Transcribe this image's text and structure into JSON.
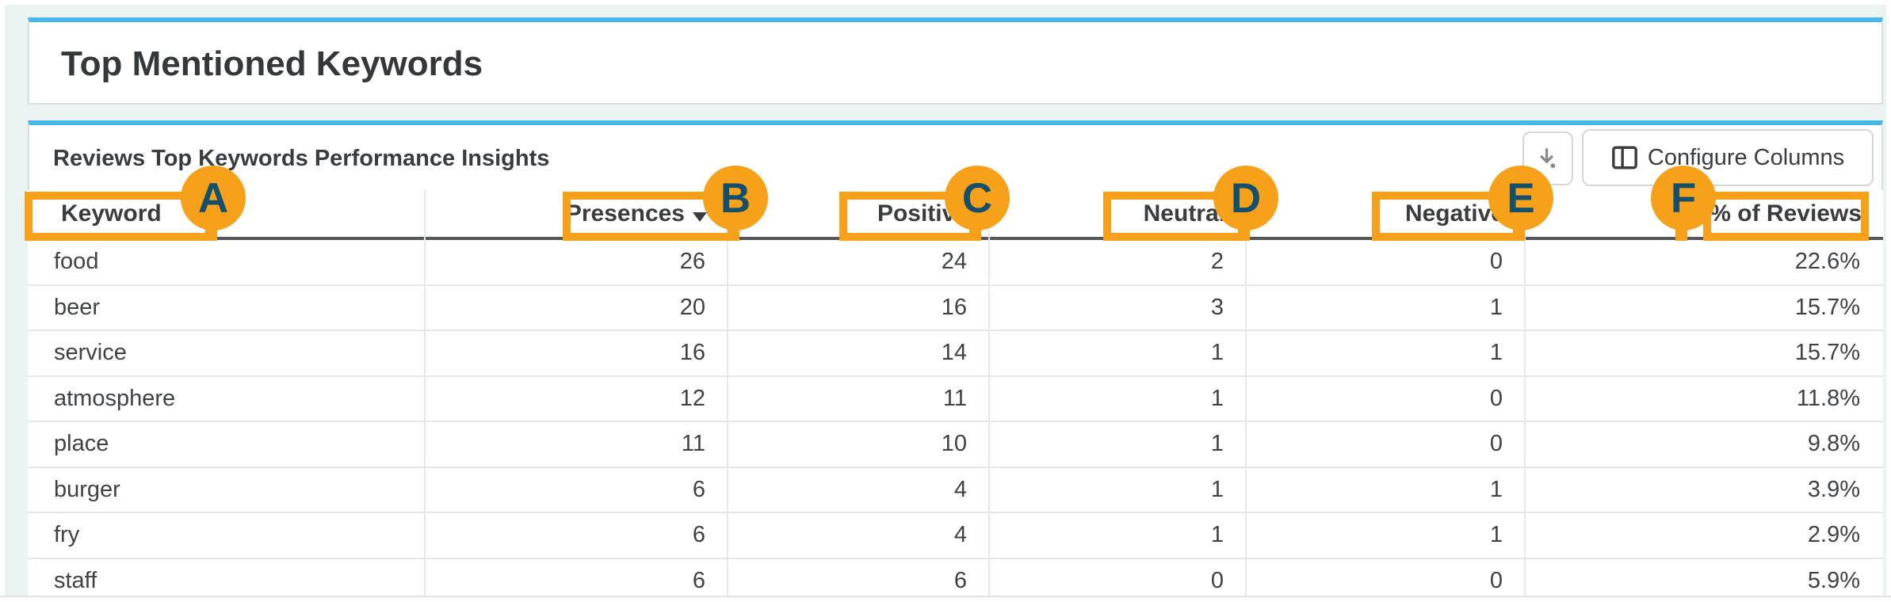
{
  "header_card": {
    "title": "Top Mentioned Keywords"
  },
  "panel": {
    "title": "Reviews Top Keywords Performance Insights",
    "buttons": {
      "configure_columns": "Configure Columns"
    }
  },
  "table": {
    "columns": [
      {
        "key": "keyword",
        "label": "Keyword",
        "marker": "A",
        "align": "left",
        "sorted": false
      },
      {
        "key": "presences",
        "label": "Presences",
        "marker": "B",
        "align": "right",
        "sorted": true
      },
      {
        "key": "positive",
        "label": "Positive",
        "marker": "C",
        "align": "right",
        "sorted": false
      },
      {
        "key": "neutral",
        "label": "Neutral",
        "marker": "D",
        "align": "right",
        "sorted": false
      },
      {
        "key": "negative",
        "label": "Negative",
        "marker": "E",
        "align": "right",
        "sorted": false
      },
      {
        "key": "pct_of_reviews",
        "label": "% of Reviews",
        "marker": "F",
        "align": "right",
        "sorted": false
      }
    ],
    "rows": [
      {
        "keyword": "food",
        "presences": "26",
        "positive": "24",
        "neutral": "2",
        "negative": "0",
        "pct_of_reviews": "22.6%"
      },
      {
        "keyword": "beer",
        "presences": "20",
        "positive": "16",
        "neutral": "3",
        "negative": "1",
        "pct_of_reviews": "15.7%"
      },
      {
        "keyword": "service",
        "presences": "16",
        "positive": "14",
        "neutral": "1",
        "negative": "1",
        "pct_of_reviews": "15.7%"
      },
      {
        "keyword": "atmosphere",
        "presences": "12",
        "positive": "11",
        "neutral": "1",
        "negative": "0",
        "pct_of_reviews": "11.8%"
      },
      {
        "keyword": "place",
        "presences": "11",
        "positive": "10",
        "neutral": "1",
        "negative": "0",
        "pct_of_reviews": "9.8%"
      },
      {
        "keyword": "burger",
        "presences": "6",
        "positive": "4",
        "neutral": "1",
        "negative": "1",
        "pct_of_reviews": "3.9%"
      },
      {
        "keyword": "fry",
        "presences": "6",
        "positive": "4",
        "neutral": "1",
        "negative": "1",
        "pct_of_reviews": "2.9%"
      },
      {
        "keyword": "staff",
        "presences": "6",
        "positive": "6",
        "neutral": "0",
        "negative": "0",
        "pct_of_reviews": "5.9%"
      }
    ]
  },
  "annotations": {
    "letters": [
      "A",
      "B",
      "C",
      "D",
      "E",
      "F"
    ]
  },
  "colors": {
    "accent_blue": "#49b7e5",
    "annotation_orange": "#f7a11a",
    "annotation_letter": "#14506b",
    "page_background": "#ebf2f2",
    "header_border_dark": "#54575a"
  }
}
